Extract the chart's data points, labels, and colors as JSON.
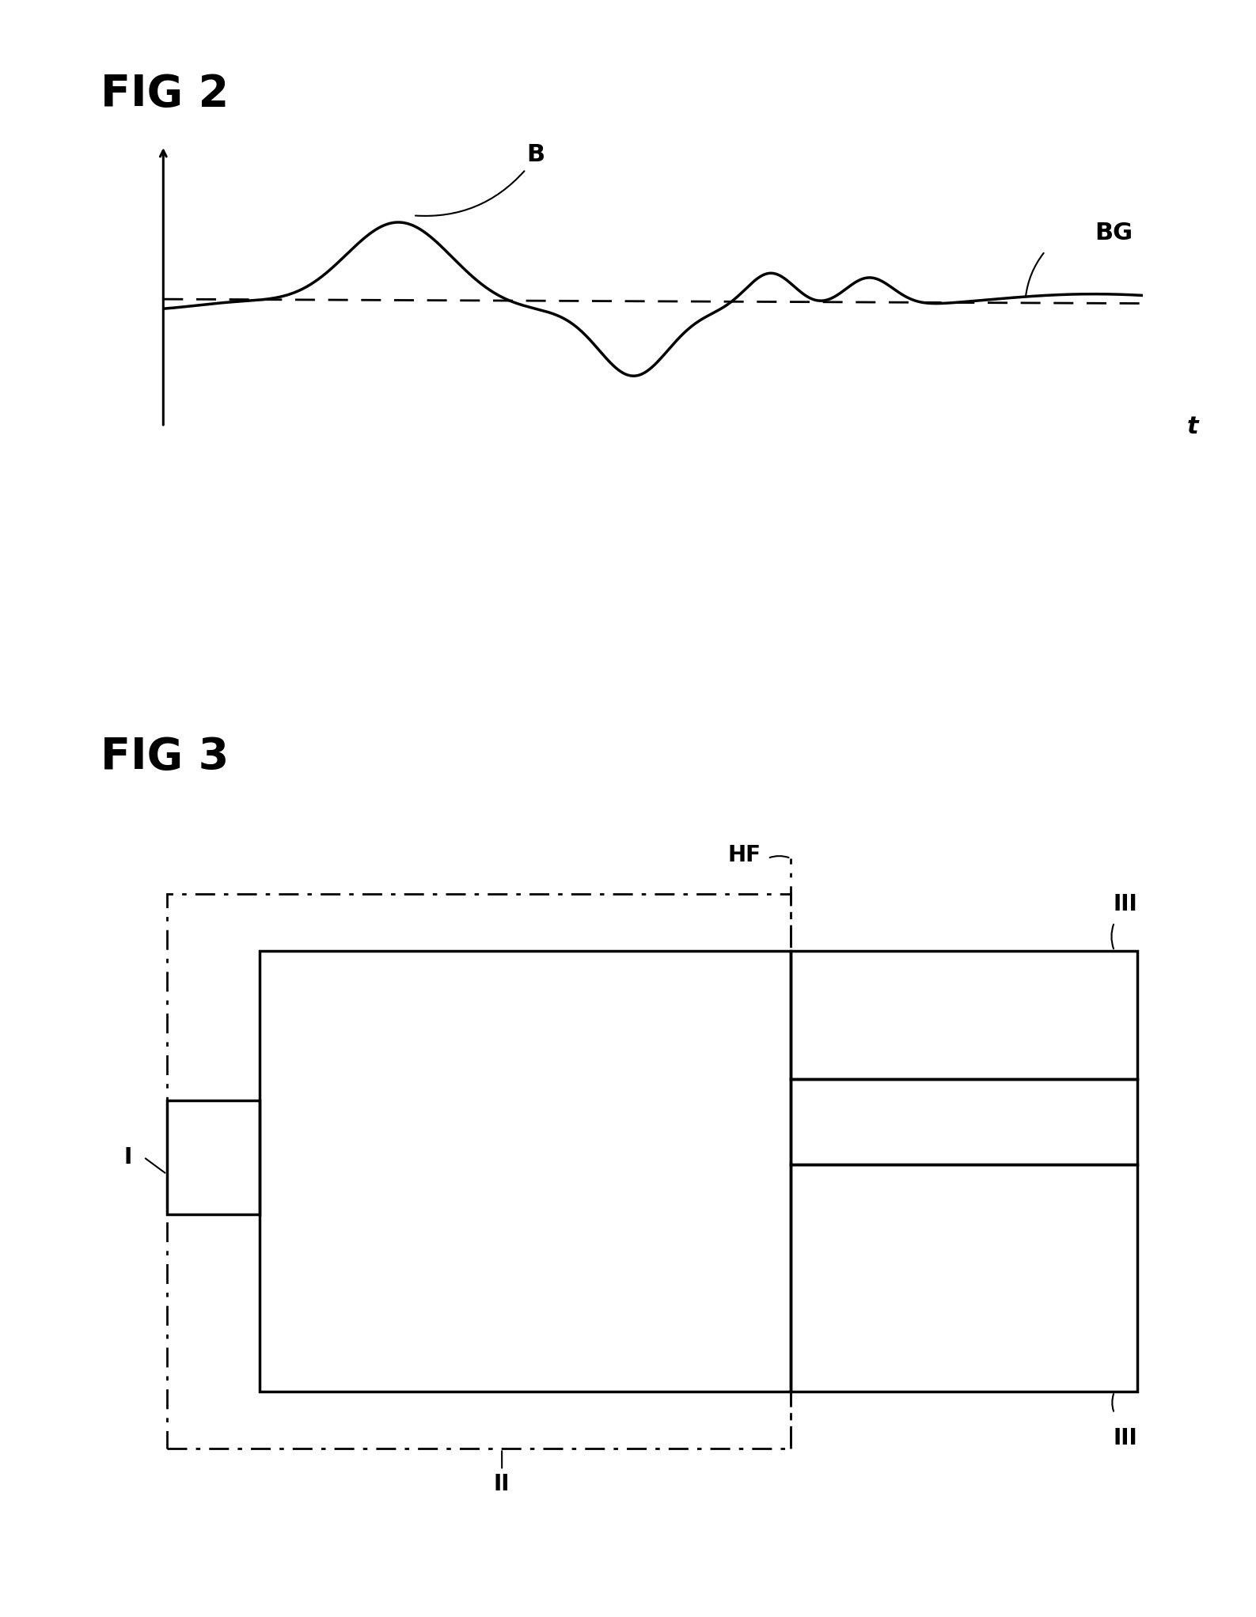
{
  "fig2_title": "FIG 2",
  "fig3_title": "FIG 3",
  "label_B": "B",
  "label_BG": "BG",
  "label_t": "t",
  "label_HF": "HF",
  "label_I": "I",
  "label_II": "II",
  "label_III": "III",
  "bg_color": "#ffffff",
  "line_color": "#000000"
}
